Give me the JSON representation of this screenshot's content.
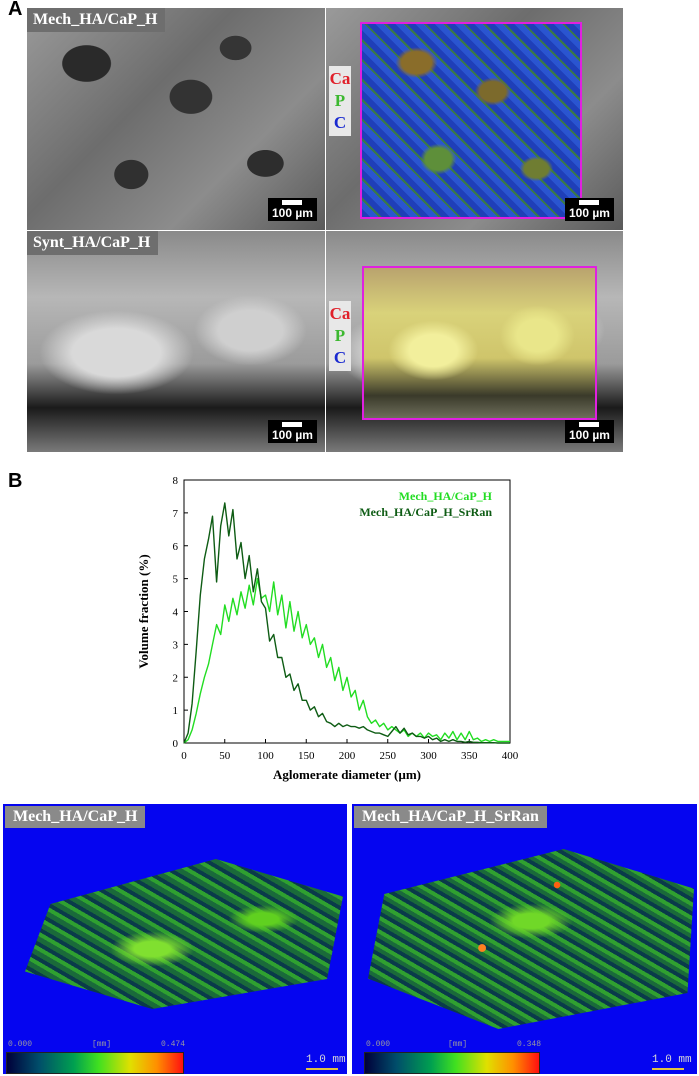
{
  "panel_a": {
    "letter": "A",
    "row1_label": "Mech_HA/CaP_H",
    "row2_label": "Synt_HA/CaP_H",
    "scale_bar": "100 µm",
    "elements": [
      "Ca",
      "P",
      "C"
    ],
    "element_colors": [
      "#e0202a",
      "#3cb830",
      "#1a2ad0"
    ],
    "roi_color": "#e020e0"
  },
  "panel_b": {
    "letter": "B",
    "legend_colors": [
      "#22dd22",
      "#0e5c14"
    ]
  },
  "chart_data": {
    "type": "line",
    "xlabel": "Aglomerate diameter (µm)",
    "ylabel": "Volume fraction (%)",
    "xlim": [
      0,
      400
    ],
    "ylim": [
      0,
      8
    ],
    "xticks": [
      "0",
      "50",
      "100",
      "150",
      "200",
      "250",
      "300",
      "350",
      "400"
    ],
    "yticks": [
      "0",
      "1",
      "2",
      "3",
      "4",
      "5",
      "6",
      "7",
      "8"
    ],
    "legend_position": "top-right",
    "series": [
      {
        "name": "Mech_HA/CaP_H",
        "color": "#22dd22",
        "x": [
          0,
          5,
          10,
          15,
          20,
          25,
          30,
          35,
          40,
          45,
          50,
          55,
          60,
          65,
          70,
          75,
          80,
          85,
          90,
          95,
          100,
          105,
          110,
          115,
          120,
          125,
          130,
          135,
          140,
          145,
          150,
          155,
          160,
          165,
          170,
          175,
          180,
          185,
          190,
          195,
          200,
          205,
          210,
          215,
          220,
          225,
          230,
          235,
          240,
          245,
          250,
          255,
          260,
          265,
          270,
          275,
          280,
          285,
          290,
          295,
          300,
          305,
          310,
          315,
          320,
          325,
          330,
          335,
          340,
          345,
          350,
          355,
          360,
          365,
          370,
          375,
          380,
          385,
          390,
          395,
          400
        ],
        "y": [
          0,
          0.1,
          0.4,
          0.9,
          1.5,
          2.0,
          2.4,
          3.0,
          3.6,
          3.3,
          4.2,
          3.7,
          4.4,
          3.9,
          4.6,
          4.1,
          4.8,
          4.2,
          5.0,
          4.4,
          4.5,
          4.0,
          4.9,
          3.9,
          4.5,
          3.5,
          4.3,
          3.4,
          4.0,
          3.2,
          3.6,
          3.0,
          3.2,
          2.6,
          3.0,
          2.3,
          2.6,
          1.9,
          2.3,
          1.6,
          2.0,
          1.4,
          1.6,
          1.0,
          1.3,
          0.8,
          0.6,
          0.7,
          0.5,
          0.6,
          0.4,
          0.5,
          0.4,
          0.3,
          0.4,
          0.2,
          0.3,
          0.2,
          0.3,
          0.15,
          0.3,
          0.2,
          0.25,
          0.1,
          0.3,
          0.15,
          0.35,
          0.1,
          0.3,
          0.1,
          0.35,
          0.1,
          0.15,
          0.05,
          0.1,
          0.05,
          0.1,
          0.05,
          0.05,
          0.05,
          0.05
        ]
      },
      {
        "name": "Mech_HA/CaP_H_SrRan",
        "color": "#0e5c14",
        "x": [
          0,
          5,
          10,
          15,
          20,
          25,
          30,
          35,
          40,
          45,
          50,
          55,
          60,
          65,
          70,
          75,
          80,
          85,
          90,
          95,
          100,
          105,
          110,
          115,
          120,
          125,
          130,
          135,
          140,
          145,
          150,
          155,
          160,
          165,
          170,
          175,
          180,
          185,
          190,
          195,
          200,
          205,
          210,
          215,
          220,
          225,
          230,
          235,
          240,
          245,
          250,
          255,
          260,
          265,
          270,
          275,
          280,
          285,
          290,
          295,
          300,
          305,
          310,
          315,
          320,
          325,
          330,
          335,
          340,
          345,
          350,
          355,
          360,
          365,
          370,
          375,
          380,
          385,
          390,
          395,
          400
        ],
        "y": [
          0,
          0.3,
          1.2,
          2.8,
          4.5,
          5.6,
          6.2,
          6.9,
          4.9,
          6.6,
          7.3,
          6.3,
          7.1,
          5.6,
          6.1,
          5.0,
          5.7,
          4.6,
          5.3,
          4.3,
          4.1,
          3.1,
          3.3,
          2.6,
          2.6,
          2.0,
          2.1,
          1.6,
          1.8,
          1.3,
          1.3,
          1.0,
          1.1,
          0.8,
          0.9,
          0.65,
          0.6,
          0.5,
          0.6,
          0.5,
          0.55,
          0.5,
          0.5,
          0.45,
          0.5,
          0.4,
          0.35,
          0.3,
          0.3,
          0.25,
          0.2,
          0.35,
          0.5,
          0.3,
          0.45,
          0.25,
          0.3,
          0.2,
          0.2,
          0.15,
          0.2,
          0.1,
          0.15,
          0.05,
          0.1,
          0.05,
          0.1,
          0.05,
          0.05,
          0.02,
          0.05,
          0.02,
          0.02,
          0.01,
          0.01,
          0.01,
          0.01,
          0.0,
          0.0,
          0.0,
          0.0
        ]
      }
    ]
  },
  "renders": [
    {
      "label": "Mech_HA/CaP_H",
      "cbar_min": "0.000",
      "cbar_unit": "[mm]",
      "cbar_max": "0.474",
      "scale": "1.0 mm"
    },
    {
      "label": "Mech_HA/CaP_H_SrRan",
      "cbar_min": "0.000",
      "cbar_unit": "[mm]",
      "cbar_max": "0.348",
      "scale": "1.0 mm"
    }
  ]
}
